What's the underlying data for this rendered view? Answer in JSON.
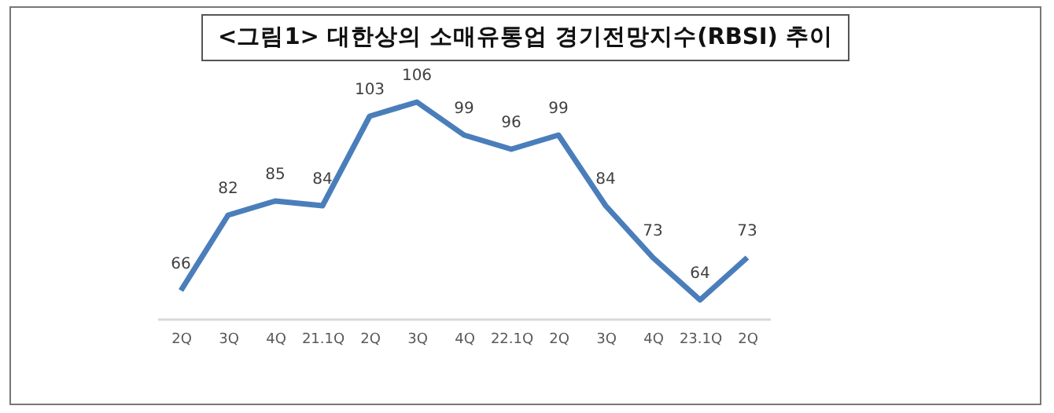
{
  "chart_data": {
    "type": "line",
    "title": "<그림1> 대한상의 소매유통업 경기전망지수(RBSI) 추이",
    "categories": [
      "2Q",
      "3Q",
      "4Q",
      "21.1Q",
      "2Q",
      "3Q",
      "4Q",
      "22.1Q",
      "2Q",
      "3Q",
      "4Q",
      "23.1Q",
      "2Q"
    ],
    "series": [
      {
        "color": "#4a7ebb",
        "values": [
          66,
          82,
          85,
          84,
          103,
          106,
          99,
          96,
          99,
          84,
          73,
          64,
          73
        ]
      }
    ],
    "data_labels": true,
    "grid": false,
    "marker": "none",
    "line_style": "solid"
  }
}
